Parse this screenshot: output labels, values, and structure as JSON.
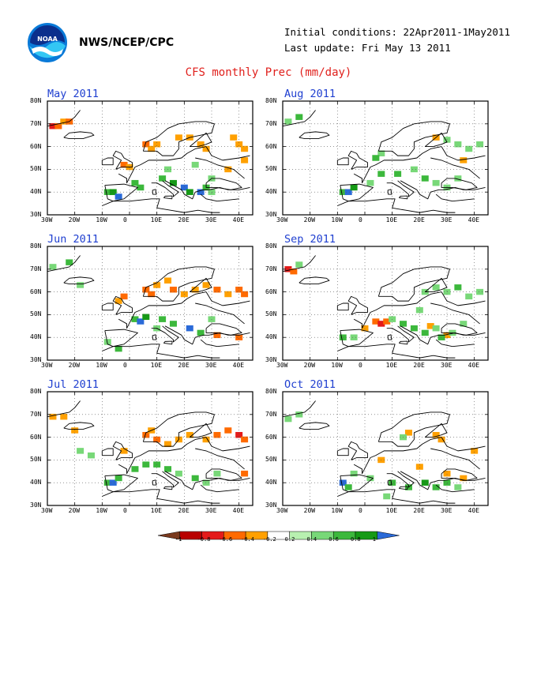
{
  "header": {
    "agency": "NWS/NCEP/CPC",
    "initial_conditions": "Initial conditions: 22Apr2011-1May2011",
    "last_update": "Last update: Fri May 13 2011",
    "title": "CFS monthly Prec (mm/day)",
    "logo_text": "NOAA",
    "logo_icon": "noaa-logo"
  },
  "axes": {
    "lat_labels": [
      "80N",
      "70N",
      "60N",
      "50N",
      "40N",
      "30N"
    ],
    "lon_labels": [
      "30W",
      "20W",
      "10W",
      "0",
      "10E",
      "20E",
      "30E",
      "40E"
    ]
  },
  "panels": [
    {
      "id": "may",
      "title": "May 2011"
    },
    {
      "id": "aug",
      "title": "Aug 2011"
    },
    {
      "id": "jun",
      "title": "Jun 2011"
    },
    {
      "id": "sep",
      "title": "Sep 2011"
    },
    {
      "id": "jul",
      "title": "Jul 2011"
    },
    {
      "id": "oct",
      "title": "Oct 2011"
    }
  ],
  "colorbar": {
    "labels": [
      "-1",
      "-0.8",
      "-0.6",
      "-0.4",
      "-0.2",
      "0.2",
      "0.4",
      "0.6",
      "0.8",
      "1"
    ],
    "colors": [
      "#7a3a1e",
      "#b80000",
      "#e41a1a",
      "#ff6a00",
      "#ffa000",
      "#ffffff",
      "#b8f0b0",
      "#78d878",
      "#3cb83c",
      "#169a16",
      "#2a6ad8"
    ]
  },
  "chart_data": {
    "type": "heatmap",
    "title": "CFS monthly Prec (mm/day)",
    "units": "mm/day",
    "lat_range": [
      30,
      80
    ],
    "lon_range": [
      -30,
      45
    ],
    "scale_breaks": [
      -1,
      -0.8,
      -0.6,
      -0.4,
      -0.2,
      0.2,
      0.4,
      0.6,
      0.8,
      1
    ],
    "panels": [
      {
        "month": "May 2011",
        "anomaly_cells": [
          [
            -28,
            69,
            -0.8
          ],
          [
            -26,
            69,
            -0.6
          ],
          [
            -24,
            71,
            -0.4
          ],
          [
            -22,
            71,
            -0.6
          ],
          [
            -2,
            52,
            -0.6
          ],
          [
            0,
            51,
            -0.4
          ],
          [
            6,
            61,
            -0.6
          ],
          [
            8,
            59,
            -0.4
          ],
          [
            10,
            61,
            -0.4
          ],
          [
            18,
            64,
            -0.4
          ],
          [
            22,
            64,
            -0.4
          ],
          [
            26,
            61,
            -0.4
          ],
          [
            28,
            59,
            -0.4
          ],
          [
            38,
            64,
            -0.4
          ],
          [
            40,
            61,
            -0.4
          ],
          [
            42,
            59,
            -0.4
          ],
          [
            42,
            54,
            -0.4
          ],
          [
            36,
            50,
            -0.4
          ],
          [
            -8,
            40,
            0.6
          ],
          [
            -6,
            40,
            0.8
          ],
          [
            -4,
            38,
            1
          ],
          [
            2,
            44,
            0.6
          ],
          [
            4,
            42,
            0.6
          ],
          [
            12,
            46,
            0.6
          ],
          [
            16,
            44,
            0.8
          ],
          [
            20,
            42,
            1
          ],
          [
            22,
            40,
            0.8
          ],
          [
            26,
            40,
            1
          ],
          [
            28,
            42,
            0.6
          ],
          [
            30,
            46,
            0.4
          ],
          [
            14,
            50,
            0.4
          ],
          [
            24,
            52,
            0.4
          ],
          [
            30,
            40,
            0.4
          ]
        ]
      },
      {
        "month": "Aug 2011",
        "anomaly_cells": [
          [
            -28,
            71,
            0.4
          ],
          [
            -24,
            73,
            0.6
          ],
          [
            6,
            57,
            0.4
          ],
          [
            4,
            55,
            0.6
          ],
          [
            26,
            64,
            -0.4
          ],
          [
            30,
            63,
            0.4
          ],
          [
            34,
            61,
            0.4
          ],
          [
            38,
            59,
            0.4
          ],
          [
            42,
            61,
            0.4
          ],
          [
            36,
            54,
            -0.4
          ],
          [
            -8,
            40,
            0.6
          ],
          [
            -6,
            40,
            1
          ],
          [
            -4,
            42,
            0.8
          ],
          [
            2,
            44,
            0.4
          ],
          [
            6,
            48,
            0.6
          ],
          [
            12,
            48,
            0.6
          ],
          [
            18,
            50,
            0.4
          ],
          [
            22,
            46,
            0.6
          ],
          [
            26,
            44,
            0.4
          ],
          [
            30,
            42,
            0.4
          ],
          [
            34,
            46,
            0.4
          ]
        ]
      },
      {
        "month": "Jun 2011",
        "anomaly_cells": [
          [
            -28,
            71,
            0.4
          ],
          [
            -22,
            73,
            0.6
          ],
          [
            -18,
            63,
            0.4
          ],
          [
            6,
            61,
            -0.6
          ],
          [
            8,
            59,
            -0.6
          ],
          [
            10,
            63,
            -0.4
          ],
          [
            14,
            65,
            -0.4
          ],
          [
            16,
            61,
            -0.6
          ],
          [
            20,
            59,
            -0.4
          ],
          [
            24,
            61,
            -0.4
          ],
          [
            28,
            63,
            -0.4
          ],
          [
            32,
            61,
            -0.6
          ],
          [
            36,
            59,
            -0.4
          ],
          [
            40,
            61,
            -0.6
          ],
          [
            42,
            59,
            -0.6
          ],
          [
            -2,
            58,
            -0.6
          ],
          [
            -4,
            56,
            -0.4
          ],
          [
            32,
            41,
            -0.6
          ],
          [
            40,
            40,
            -0.6
          ],
          [
            2,
            48,
            0.6
          ],
          [
            4,
            47,
            1
          ],
          [
            6,
            49,
            0.8
          ],
          [
            12,
            48,
            0.6
          ],
          [
            16,
            46,
            0.6
          ],
          [
            22,
            44,
            1
          ],
          [
            26,
            42,
            0.6
          ],
          [
            -8,
            38,
            0.4
          ],
          [
            -4,
            35,
            0.6
          ],
          [
            10,
            44,
            0.4
          ],
          [
            30,
            48,
            0.4
          ]
        ]
      },
      {
        "month": "Sep 2011",
        "anomaly_cells": [
          [
            -28,
            70,
            -0.8
          ],
          [
            -26,
            69,
            -0.6
          ],
          [
            -24,
            72,
            0.4
          ],
          [
            4,
            47,
            -0.6
          ],
          [
            6,
            46,
            -0.8
          ],
          [
            8,
            47,
            -0.6
          ],
          [
            0,
            44,
            -0.4
          ],
          [
            24,
            45,
            -0.4
          ],
          [
            30,
            41,
            -0.4
          ],
          [
            22,
            60,
            0.4
          ],
          [
            26,
            62,
            0.4
          ],
          [
            30,
            60,
            0.4
          ],
          [
            34,
            62,
            0.6
          ],
          [
            38,
            58,
            0.4
          ],
          [
            42,
            60,
            0.4
          ],
          [
            -8,
            40,
            0.6
          ],
          [
            -4,
            40,
            0.4
          ],
          [
            10,
            48,
            0.4
          ],
          [
            14,
            46,
            0.6
          ],
          [
            18,
            44,
            0.6
          ],
          [
            22,
            42,
            0.6
          ],
          [
            26,
            44,
            0.4
          ],
          [
            28,
            40,
            0.6
          ],
          [
            32,
            42,
            0.4
          ],
          [
            36,
            46,
            0.4
          ],
          [
            20,
            52,
            0.4
          ]
        ]
      },
      {
        "month": "Jul 2011",
        "anomaly_cells": [
          [
            -28,
            69,
            -0.4
          ],
          [
            -24,
            69,
            -0.4
          ],
          [
            -20,
            63,
            -0.4
          ],
          [
            6,
            61,
            -0.6
          ],
          [
            8,
            63,
            -0.4
          ],
          [
            10,
            59,
            -0.6
          ],
          [
            14,
            57,
            -0.4
          ],
          [
            18,
            59,
            -0.4
          ],
          [
            22,
            61,
            -0.4
          ],
          [
            28,
            59,
            -0.4
          ],
          [
            32,
            61,
            -0.6
          ],
          [
            36,
            63,
            -0.6
          ],
          [
            40,
            61,
            -0.8
          ],
          [
            42,
            59,
            -0.6
          ],
          [
            -2,
            54,
            -0.4
          ],
          [
            42,
            44,
            -0.6
          ],
          [
            -8,
            40,
            0.6
          ],
          [
            -6,
            40,
            1
          ],
          [
            -4,
            42,
            0.6
          ],
          [
            2,
            46,
            0.6
          ],
          [
            6,
            48,
            0.6
          ],
          [
            10,
            48,
            0.6
          ],
          [
            14,
            46,
            0.6
          ],
          [
            18,
            44,
            0.4
          ],
          [
            24,
            42,
            0.6
          ],
          [
            28,
            40,
            0.4
          ],
          [
            32,
            44,
            0.4
          ],
          [
            -18,
            54,
            0.4
          ],
          [
            -14,
            52,
            0.4
          ]
        ]
      },
      {
        "month": "Oct 2011",
        "anomaly_cells": [
          [
            -28,
            68,
            0.4
          ],
          [
            -24,
            70,
            0.4
          ],
          [
            16,
            62,
            -0.4
          ],
          [
            26,
            61,
            -0.4
          ],
          [
            28,
            59,
            -0.4
          ],
          [
            40,
            54,
            -0.4
          ],
          [
            6,
            50,
            -0.4
          ],
          [
            20,
            47,
            -0.4
          ],
          [
            30,
            44,
            -0.4
          ],
          [
            36,
            42,
            -0.4
          ],
          [
            -8,
            40,
            1
          ],
          [
            -6,
            38,
            0.6
          ],
          [
            -4,
            44,
            0.4
          ],
          [
            2,
            42,
            0.4
          ],
          [
            10,
            40,
            0.6
          ],
          [
            16,
            38,
            0.6
          ],
          [
            22,
            40,
            0.8
          ],
          [
            26,
            38,
            0.6
          ],
          [
            30,
            40,
            0.6
          ],
          [
            34,
            38,
            0.4
          ],
          [
            8,
            34,
            0.4
          ],
          [
            14,
            60,
            0.4
          ]
        ]
      }
    ]
  }
}
